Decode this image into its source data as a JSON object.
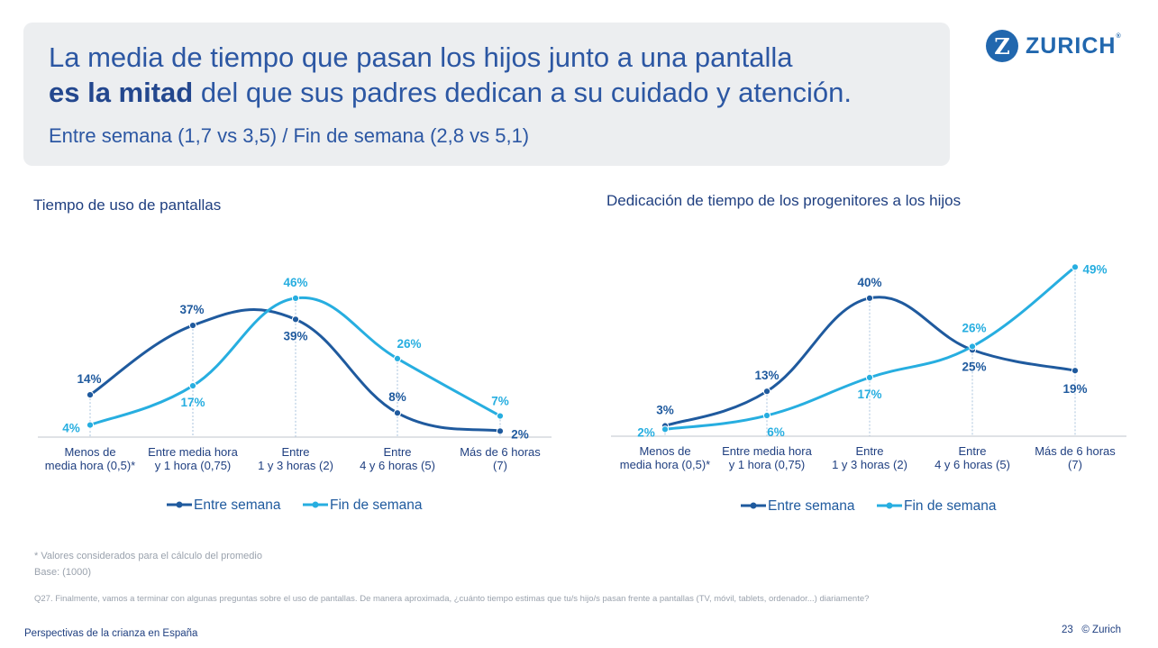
{
  "header": {
    "title_line1": "La media de tiempo que pasan los hijos junto a una pantalla",
    "title_bold": "es la mitad",
    "title_line2_rest": " del que sus padres dedican a su cuidado y atención.",
    "subtitle": "Entre semana (1,7 vs 3,5) / Fin de semana (2,8 vs 5,1)"
  },
  "logo": {
    "mark": "Z",
    "text": "ZURICH",
    "reg": "®"
  },
  "colors": {
    "entre_semana": "#1f5a9e",
    "fin_de_semana": "#27aee0",
    "axis": "#bfc5cc",
    "text_dark": "#1f3f80"
  },
  "chart_data": [
    {
      "type": "line",
      "title": "Tiempo de uso de pantallas",
      "categories": [
        "Menos de\nmedia hora (0,5)*",
        "Entre media hora\ny 1 hora (0,75)",
        "Entre\n1 y 3 horas (2)",
        "Entre\n4 y 6 horas (5)",
        "Más de 6 horas\n(7)"
      ],
      "series": [
        {
          "name": "Entre semana",
          "values": [
            14,
            37,
            39,
            8,
            2
          ],
          "labels": [
            "14%",
            "37%",
            "39%",
            "8%",
            "2%"
          ]
        },
        {
          "name": "Fin de semana",
          "values": [
            4,
            17,
            46,
            26,
            7
          ],
          "labels": [
            "4%",
            "17%",
            "46%",
            "26%",
            "7%"
          ]
        }
      ],
      "ylim": [
        0,
        50
      ],
      "legend": "bottom"
    },
    {
      "type": "line",
      "title": "Dedicación de tiempo de los progenitores a los hijos",
      "categories": [
        "Menos de\nmedia hora (0,5)*",
        "Entre media hora\ny 1 hora (0,75)",
        "Entre\n1 y 3 horas (2)",
        "Entre\n4 y 6 horas (5)",
        "Más de 6 horas\n(7)"
      ],
      "series": [
        {
          "name": "Entre semana",
          "values": [
            3,
            13,
            40,
            25,
            19
          ],
          "labels": [
            "3%",
            "13%",
            "40%",
            "25%",
            "19%"
          ]
        },
        {
          "name": "Fin de semana",
          "values": [
            2,
            6,
            17,
            26,
            49
          ],
          "labels": [
            "2%",
            "6%",
            "17%",
            "26%",
            "49%"
          ]
        }
      ],
      "ylim": [
        0,
        50
      ],
      "legend": "bottom"
    }
  ],
  "notes": {
    "asterisk": "* Valores considerados para el cálculo del promedio",
    "base": "Base: (1000)",
    "question": "Q27. Finalmente, vamos a terminar con algunas preguntas sobre el uso de pantallas. De manera aproximada, ¿cuánto tiempo estimas que tu/s hijo/s pasan frente a pantallas (TV, móvil, tablets, ordenador...) diariamente?"
  },
  "footer": {
    "left": "Perspectivas de la crianza en España",
    "page": "23",
    "copyright": "© Zurich"
  }
}
